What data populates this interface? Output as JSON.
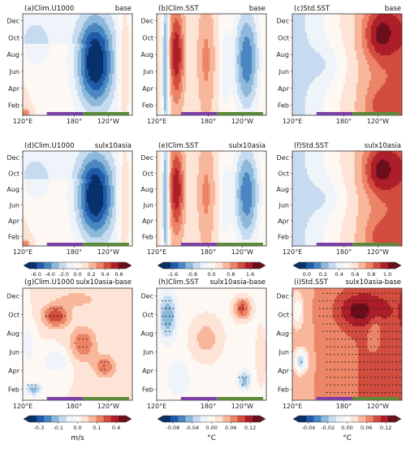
{
  "months_y": [
    "Dec",
    "Oct",
    "Aug",
    "Jun",
    "Apr",
    "Feb"
  ],
  "lon_x": [
    "120°E",
    "180°",
    "120°W"
  ],
  "panels": [
    {
      "title": "(a)Clim.U1000",
      "run": "base",
      "field": "u",
      "row": 0,
      "col": 0
    },
    {
      "title": "(b)Clim.SST",
      "run": "base",
      "field": "sst",
      "row": 0,
      "col": 1
    },
    {
      "title": "(c)Std.SST",
      "run": "base",
      "field": "std",
      "row": 0,
      "col": 2
    },
    {
      "title": "(d)Clim.U1000",
      "run": "sulx10asia",
      "field": "u",
      "row": 1,
      "col": 0
    },
    {
      "title": "(e)Clim.SST",
      "run": "sulx10asia",
      "field": "sst",
      "row": 1,
      "col": 1
    },
    {
      "title": "(f)Std.SST",
      "run": "sulx10asia",
      "field": "std",
      "row": 1,
      "col": 2
    },
    {
      "title": "(g)Clim.U1000",
      "run": "sulx10asia-base",
      "field": "du",
      "row": 2,
      "col": 0
    },
    {
      "title": "(h)Clim.SST",
      "run": "sulx10asia-base",
      "field": "dsst",
      "row": 2,
      "col": 1
    },
    {
      "title": "(i)Std.SST",
      "run": "sulx10asia-base",
      "field": "dstd",
      "row": 2,
      "col": 2
    }
  ],
  "colorbars": [
    {
      "row": 0,
      "col": 0,
      "ticks": [
        "-6.0",
        "-4.0",
        "-2.0",
        "0.0",
        "0.2",
        "0.4",
        "0.6"
      ],
      "unit": ""
    },
    {
      "row": 0,
      "col": 1,
      "ticks": [
        "-1.6",
        "-0.8",
        "0.0",
        "0.8",
        "1.6"
      ],
      "unit": ""
    },
    {
      "row": 0,
      "col": 2,
      "ticks": [
        "0.0",
        "0.2",
        "0.4",
        "0.6",
        "0.8",
        "1.0"
      ],
      "unit": ""
    },
    {
      "row": 1,
      "col": 0,
      "ticks": [
        "-0.3",
        "-0.1",
        "0.0",
        "0.1",
        "0.4"
      ],
      "unit": "m/s"
    },
    {
      "row": 1,
      "col": 1,
      "ticks": [
        "-0.08",
        "-0.04",
        "0.00",
        "0.06",
        "0.12"
      ],
      "unit": "°C"
    },
    {
      "row": 1,
      "col": 2,
      "ticks": [
        "-0.04",
        "-0.02",
        "0.00",
        "0.06",
        "0.12"
      ],
      "unit": "°C"
    }
  ],
  "palette": {
    "blues": [
      "#08306b",
      "#1f5ba8",
      "#4a87c2",
      "#8cb8da",
      "#c6dbef",
      "#eef4fa"
    ],
    "neutral": "#fdf8f3",
    "reds": [
      "#fde4d6",
      "#f8b79b",
      "#ec8467",
      "#d24c3f",
      "#ad1e2a",
      "#6d0e1c"
    ],
    "purple_bar": "#7b3fa5",
    "green_bar": "#5c8a3a"
  }
}
